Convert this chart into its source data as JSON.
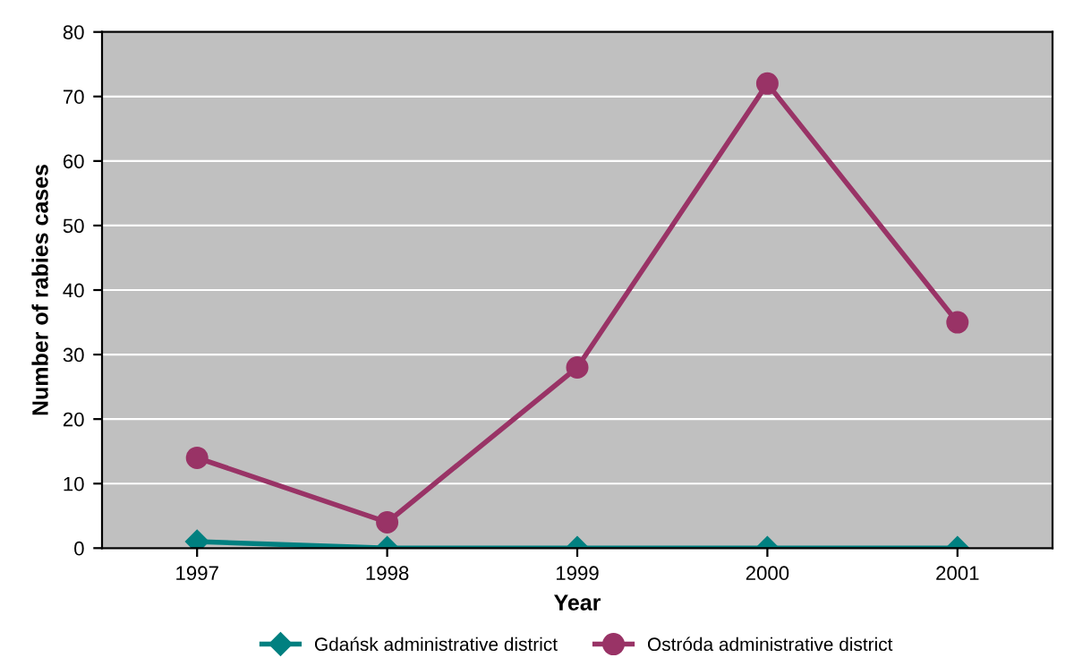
{
  "chart_data": {
    "type": "line",
    "xlabel": "Year",
    "ylabel": "Number of rabies cases",
    "categories": [
      "1997",
      "1998",
      "1999",
      "2000",
      "2001"
    ],
    "series": [
      {
        "name": "Gdańsk administrative district",
        "color": "#008080",
        "marker": "diamond",
        "values": [
          1,
          0,
          0,
          0,
          0
        ]
      },
      {
        "name": "Ostróda administrative district",
        "color": "#993366",
        "marker": "circle",
        "values": [
          14,
          4,
          28,
          72,
          35
        ]
      }
    ],
    "ylim": [
      0,
      80
    ],
    "yticks": [
      0,
      10,
      20,
      30,
      40,
      50,
      60,
      70,
      80
    ],
    "grid": "y",
    "legend": "bottom",
    "line_style": "solid"
  }
}
